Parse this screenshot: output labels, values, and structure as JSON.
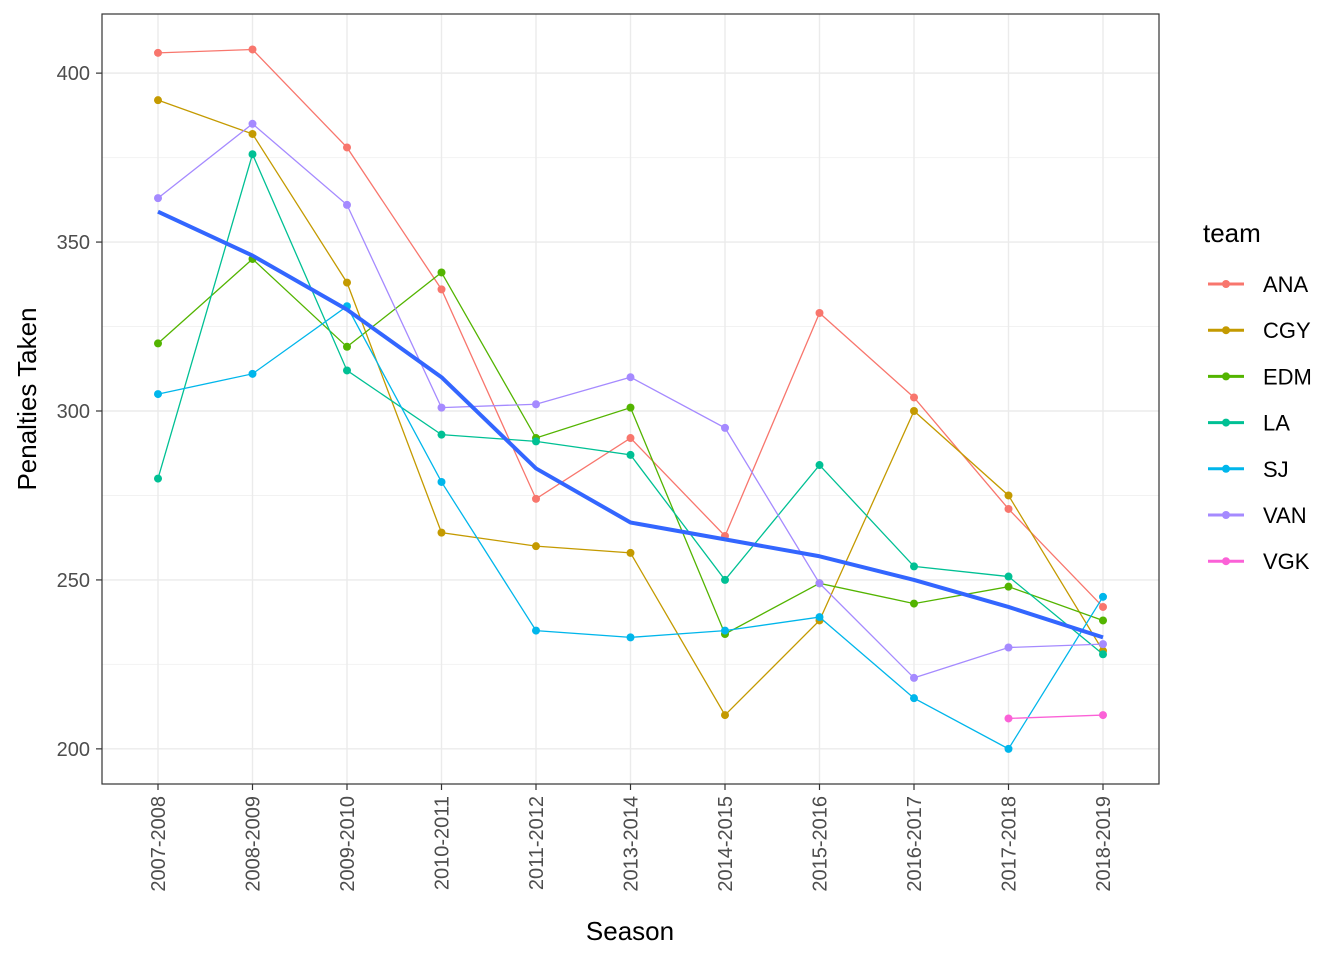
{
  "chart_data": {
    "type": "line",
    "title": "",
    "xlabel": "Season",
    "ylabel": "Penalties Taken",
    "ylim": [
      189.6,
      417.5
    ],
    "yticks": [
      200,
      250,
      300,
      350,
      400
    ],
    "grid": true,
    "legend_title": "team",
    "legend_position": "right",
    "categories": [
      "2007-2008",
      "2008-2009",
      "2009-2010",
      "2010-2011",
      "2011-2012",
      "2013-2014",
      "2014-2015",
      "2015-2016",
      "2016-2017",
      "2017-2018",
      "2018-2019"
    ],
    "series": [
      {
        "name": "ANA",
        "color": "#F8766D",
        "values": [
          406,
          407,
          378,
          336,
          274,
          292,
          263,
          329,
          304,
          271,
          242
        ]
      },
      {
        "name": "CGY",
        "color": "#C49A00",
        "values": [
          392,
          382,
          338,
          264,
          260,
          258,
          210,
          238,
          300,
          275,
          229
        ]
      },
      {
        "name": "EDM",
        "color": "#53B400",
        "values": [
          320,
          345,
          319,
          341,
          292,
          301,
          234,
          249,
          243,
          248,
          238
        ]
      },
      {
        "name": "LA",
        "color": "#00C094",
        "values": [
          280,
          376,
          312,
          293,
          291,
          287,
          250,
          284,
          254,
          251,
          228
        ]
      },
      {
        "name": "SJ",
        "color": "#00B6EB",
        "values": [
          305,
          311,
          331,
          279,
          235,
          233,
          235,
          239,
          215,
          200,
          245
        ]
      },
      {
        "name": "VAN",
        "color": "#A58AFF",
        "values": [
          363,
          385,
          361,
          301,
          302,
          310,
          295,
          249,
          221,
          230,
          231
        ]
      },
      {
        "name": "VGK",
        "color": "#FB61D7",
        "values": [
          null,
          null,
          null,
          null,
          null,
          null,
          null,
          null,
          null,
          209,
          210
        ]
      }
    ],
    "smooth": {
      "name": "trend",
      "color": "#3366FF",
      "values": [
        359,
        346,
        330,
        310,
        283,
        267,
        262,
        257,
        250,
        242,
        233
      ]
    }
  }
}
